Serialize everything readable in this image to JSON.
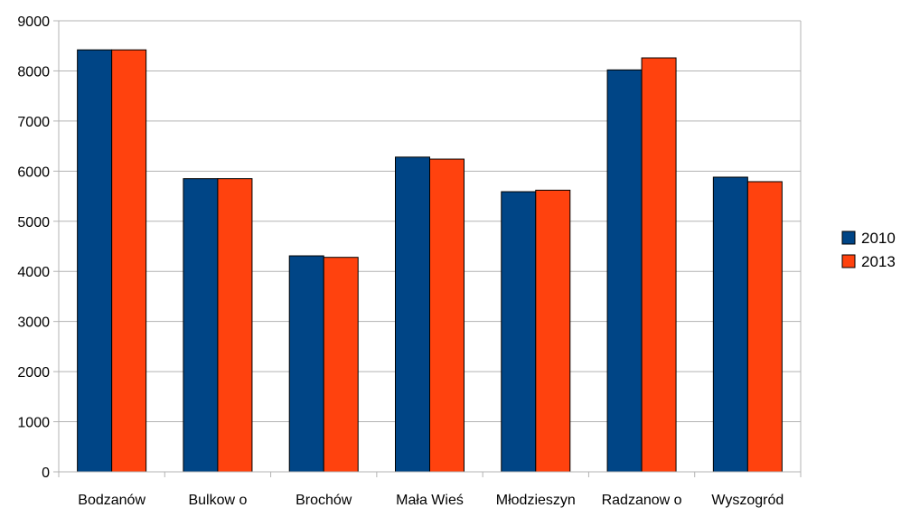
{
  "chart_data": {
    "type": "bar",
    "title": "",
    "xlabel": "",
    "ylabel": "",
    "categories": [
      "Bodzanów",
      "Bulkow o",
      "Brochów",
      "Mała Wieś",
      "Młodzieszyn",
      "Radzanow o",
      "Wyszogród"
    ],
    "series": [
      {
        "name": "2010",
        "color": "#004586",
        "values": [
          8420,
          5850,
          4310,
          6280,
          5590,
          8020,
          5880
        ]
      },
      {
        "name": "2013",
        "color": "#ff420e",
        "values": [
          8420,
          5850,
          4280,
          6240,
          5620,
          8260,
          5790
        ]
      }
    ],
    "ylim": [
      0,
      9000
    ],
    "yticks": [
      0,
      1000,
      2000,
      3000,
      4000,
      5000,
      6000,
      7000,
      8000,
      9000
    ],
    "grid": true,
    "legend": "right"
  }
}
